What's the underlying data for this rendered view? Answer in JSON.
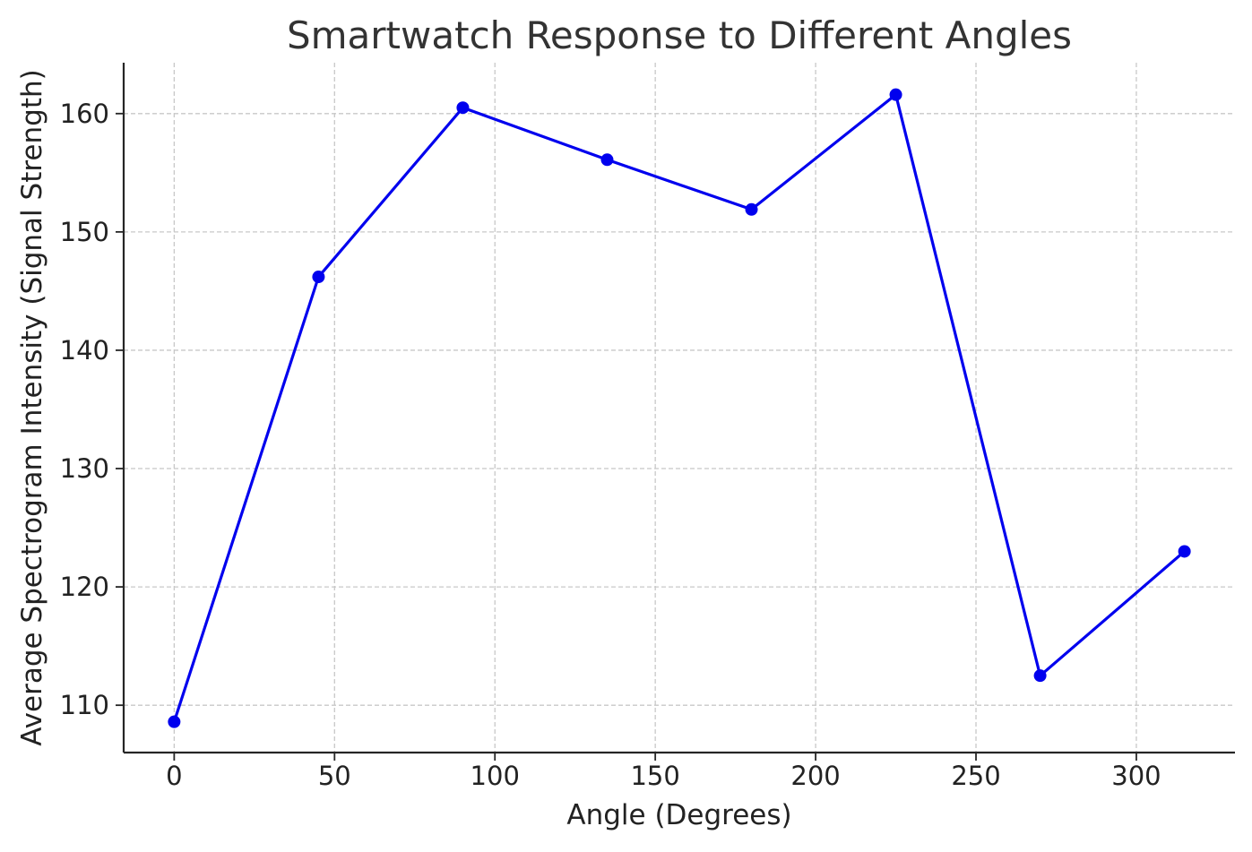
{
  "chart_data": {
    "type": "line",
    "title": "Smartwatch Response to Different Angles",
    "xlabel": "Angle (Degrees)",
    "ylabel": "Average Spectrogram Intensity (Signal Strength)",
    "x": [
      0,
      45,
      90,
      135,
      180,
      225,
      270,
      315
    ],
    "series": [
      {
        "values": [
          108.6,
          146.2,
          160.5,
          156.1,
          151.9,
          161.6,
          112.5,
          123.0
        ],
        "color": "#0000ee",
        "marker": "circle"
      }
    ],
    "xlim": [
      -15.75,
      330.75
    ],
    "ylim": [
      106.0,
      164.3
    ],
    "xticks": [
      0,
      50,
      100,
      150,
      200,
      250,
      300
    ],
    "yticks": [
      110,
      120,
      130,
      140,
      150,
      160
    ],
    "grid": true,
    "grid_style": "dashed",
    "legend": "none"
  }
}
